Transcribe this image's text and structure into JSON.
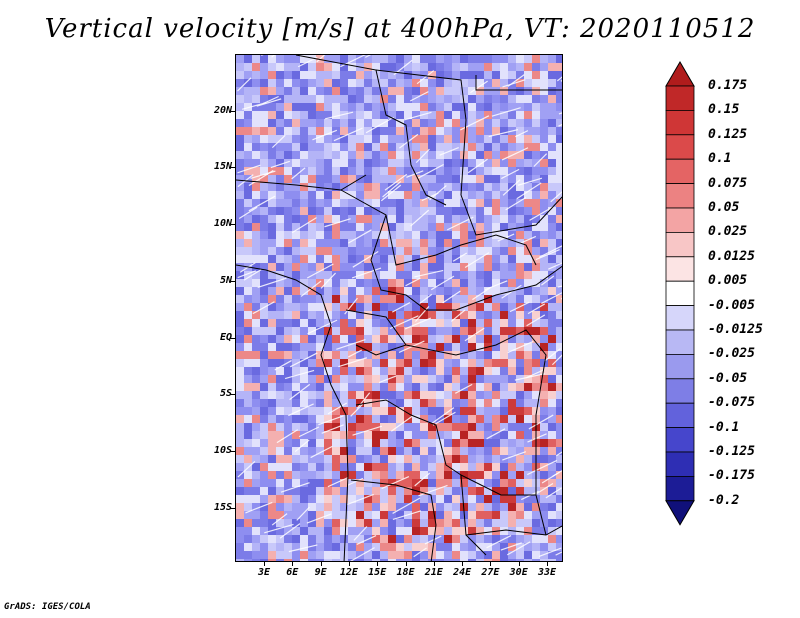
{
  "title": "Vertical velocity [m/s] at 400hPa, VT: 2020110512",
  "credit": "GrADS: IGES/COLA",
  "map": {
    "lat_labels": [
      "20N",
      "15N",
      "10N",
      "5N",
      "EQ",
      "5S",
      "10S",
      "15S"
    ],
    "lon_labels": [
      "3E",
      "6E",
      "9E",
      "12E",
      "15E",
      "18E",
      "21E",
      "24E",
      "27E",
      "30E",
      "33E"
    ]
  },
  "colorbar": {
    "labels": [
      "0.175",
      "0.15",
      "0.125",
      "0.1",
      "0.075",
      "0.05",
      "0.025",
      "0.0125",
      "0.005",
      "-0.005",
      "-0.0125",
      "-0.025",
      "-0.05",
      "-0.075",
      "-0.1",
      "-0.125",
      "-0.175",
      "-0.2"
    ],
    "colors": [
      "#b01c1c",
      "#c02828",
      "#cf3636",
      "#db4a4a",
      "#e46464",
      "#ec8282",
      "#f3a4a4",
      "#f8c6c6",
      "#fce4e4",
      "#ffffff",
      "#d6d6fa",
      "#b8b8f4",
      "#9a9aee",
      "#7e7ee6",
      "#6262dc",
      "#4646cc",
      "#2e2eb4",
      "#1c1c96",
      "#10107a"
    ]
  }
}
